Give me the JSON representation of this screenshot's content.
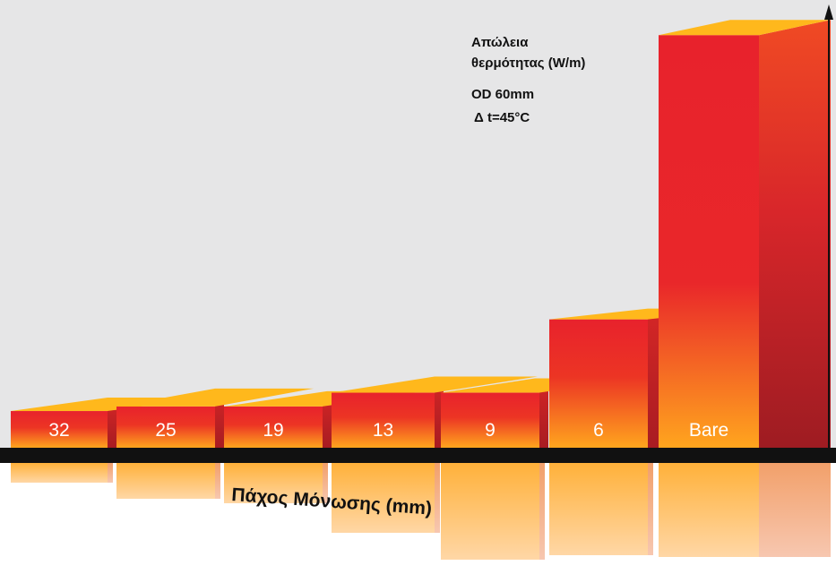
{
  "chart_data": {
    "type": "bar",
    "style": "3d-bars-with-reflection",
    "title": "",
    "annotations": [
      "Απώλεια",
      "θερμότητας (W/m)",
      "OD 60mm",
      "Δ t=45°C"
    ],
    "xlabel": "Πάχος Μόνωσης (mm)",
    "ylabel": "",
    "categories": [
      "32",
      "25",
      "19",
      "13",
      "9",
      "6",
      "Bare"
    ],
    "values": [
      8,
      9,
      9,
      12,
      12,
      28,
      90
    ],
    "ylim": [
      0,
      95
    ],
    "grid": false,
    "legend": "none"
  },
  "colors": {
    "background": "#e6e6e7",
    "bar_top": "#ffb81c",
    "bar_upper": "#e8222c",
    "bar_lower": "#ffa51e",
    "bar_side": "#c01f24",
    "axis": "#111111"
  }
}
